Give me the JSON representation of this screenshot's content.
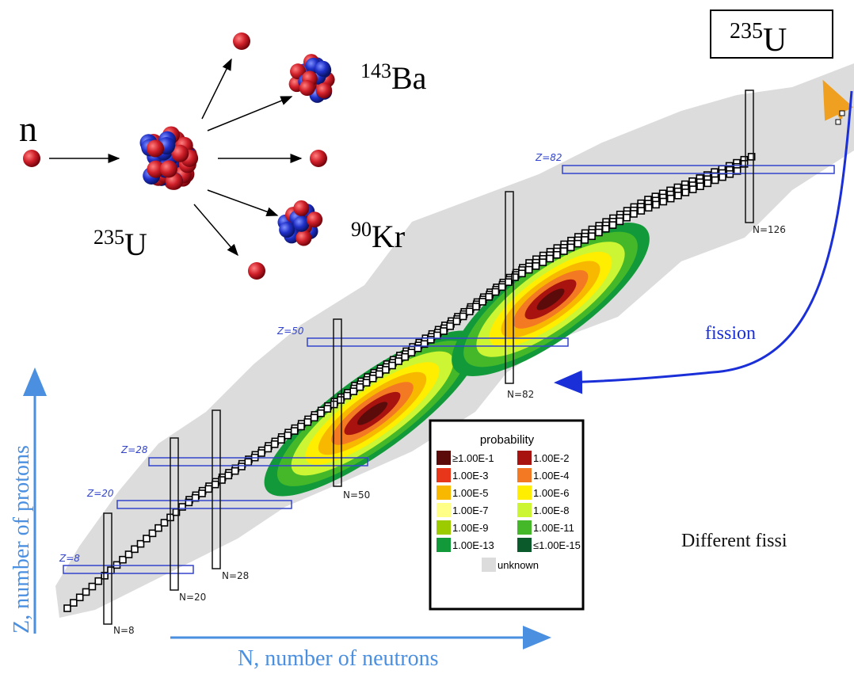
{
  "reaction": {
    "neutron_label": "n",
    "target": {
      "mass": "235",
      "symbol": "U"
    },
    "products": [
      {
        "mass": "143",
        "symbol": "Ba"
      },
      {
        "mass": "90",
        "symbol": "Kr"
      }
    ]
  },
  "corner_box": {
    "mass": "235",
    "symbol": "U"
  },
  "fission_label": "fission",
  "side_text": "Different fissi",
  "axes": {
    "y_label": "Z, number of protons",
    "x_label": "N, number of neutrons"
  },
  "magic": {
    "z": [
      "Z=8",
      "Z=20",
      "Z=28",
      "Z=50",
      "Z=82"
    ],
    "n": [
      "N=8",
      "N=20",
      "N=28",
      "N=50",
      "N=82",
      "N=126"
    ]
  },
  "legend": {
    "title": "probability",
    "items": [
      {
        "label": "≥1.00E-1",
        "color": "#5c0b0b"
      },
      {
        "label": "1.00E-2",
        "color": "#a8120f"
      },
      {
        "label": "1.00E-3",
        "color": "#e8361a"
      },
      {
        "label": "1.00E-4",
        "color": "#f37a22"
      },
      {
        "label": "1.00E-5",
        "color": "#f9b800"
      },
      {
        "label": "1.00E-6",
        "color": "#ffee00"
      },
      {
        "label": "1.00E-7",
        "color": "#ffff88"
      },
      {
        "label": "1.00E-8",
        "color": "#ccf533"
      },
      {
        "label": "1.00E-9",
        "color": "#9ccc00"
      },
      {
        "label": "1.00E-11",
        "color": "#45b82a"
      },
      {
        "label": "1.00E-13",
        "color": "#129a3a"
      },
      {
        "label": "≤1.00E-15",
        "color": "#0b5a2b"
      }
    ],
    "unknown": {
      "label": "unknown",
      "color": "#dcdcdc"
    }
  }
}
